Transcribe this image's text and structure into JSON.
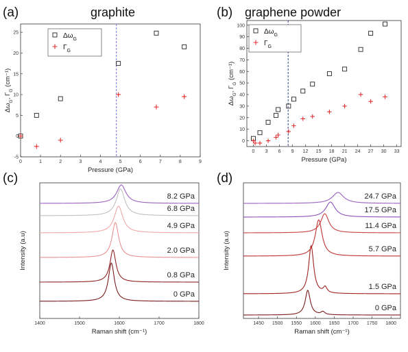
{
  "chart_data": [
    {
      "type": "scatter",
      "panel": "(a)",
      "title": "graphite",
      "xlabel": "Pressure (GPa)",
      "ylabel": "Δω_G, Γ_G (cm⁻¹)",
      "xlim": [
        0,
        9
      ],
      "ylim": [
        -5,
        27
      ],
      "xticks": [
        "0",
        "1",
        "2",
        "3",
        "4",
        "5",
        "6",
        "7",
        "8",
        "9"
      ],
      "yticks": [
        "-5",
        "0",
        "5",
        "10",
        "15",
        "20",
        "25"
      ],
      "legend_position": "top-left",
      "vline_x": 4.8,
      "series": [
        {
          "name": "Δω_G",
          "marker": "square",
          "color": "#222222",
          "x": [
            0.0,
            0.8,
            2.0,
            4.9,
            6.8,
            8.2
          ],
          "y": [
            0.0,
            5.0,
            9.0,
            17.5,
            24.8,
            21.5
          ]
        },
        {
          "name": "Γ_G",
          "marker": "plus",
          "color": "#e03030",
          "x": [
            0.0,
            0.8,
            2.0,
            4.9,
            6.8,
            8.2
          ],
          "y": [
            0.0,
            -2.5,
            -1.0,
            10.0,
            7.0,
            9.5
          ]
        }
      ]
    },
    {
      "type": "scatter",
      "panel": "(b)",
      "title": "graphene powder",
      "xlabel": "Pressure (GPa)",
      "ylabel": "Δω_G, Γ_G (cm⁻¹)",
      "xlim": [
        -1.5,
        34
      ],
      "ylim": [
        -5,
        104
      ],
      "xticks": [
        "0",
        "3",
        "6",
        "9",
        "12",
        "15",
        "18",
        "21",
        "24",
        "27",
        "30",
        "33"
      ],
      "yticks": [
        "0",
        "10",
        "20",
        "30",
        "40",
        "50",
        "60",
        "70",
        "80",
        "90",
        "100"
      ],
      "legend_position": "top-left",
      "vline_x": 8.0,
      "series": [
        {
          "name": "Δω_G",
          "marker": "square",
          "color": "#222222",
          "x": [
            0.0,
            1.5,
            3.4,
            5.2,
            5.7,
            8.1,
            9.3,
            11.4,
            13.6,
            17.5,
            21.0,
            24.7,
            27.0,
            30.3
          ],
          "y": [
            2.0,
            7.0,
            16.0,
            22.0,
            27.0,
            30.0,
            36.0,
            43.0,
            49.0,
            58.0,
            62.0,
            79.0,
            93.0,
            101.0
          ]
        },
        {
          "name": "Γ_G",
          "marker": "plus",
          "color": "#e03030",
          "x": [
            0.0,
            0.4,
            1.5,
            3.4,
            5.2,
            5.7,
            8.1,
            9.3,
            11.4,
            13.6,
            17.5,
            21.0,
            24.7,
            27.0,
            30.3
          ],
          "y": [
            0.0,
            -2.0,
            -2.0,
            0.0,
            3.0,
            5.0,
            8.0,
            13.0,
            19.0,
            21.0,
            25.0,
            30.0,
            40.0,
            34.0,
            38.0
          ]
        }
      ]
    },
    {
      "type": "line",
      "panel": "(c)",
      "xlabel": "Raman shift (cm⁻¹)",
      "ylabel": "Intensity (a.u)",
      "xlim": [
        1400,
        1800
      ],
      "xticks": [
        "1400",
        "1500",
        "1600",
        "1700",
        "1800"
      ],
      "series": [
        {
          "name": "0 GPa",
          "color": "#7a1a1a",
          "center": 1580,
          "width": 9,
          "height": 56,
          "baseline": 440
        },
        {
          "name": "0.8 GPa",
          "color": "#8c2222",
          "center": 1584,
          "width": 9,
          "height": 47,
          "baseline": 412
        },
        {
          "name": "2.0 GPa",
          "color": "#e89090",
          "center": 1590,
          "width": 10,
          "height": 51,
          "baseline": 376
        },
        {
          "name": "4.9 GPa",
          "color": "#f0a8a8",
          "center": 1598,
          "width": 13,
          "height": 39,
          "baseline": 340
        },
        {
          "name": "6.8 GPa",
          "color": "#c0c0c0",
          "center": 1603,
          "width": 13,
          "height": 39,
          "baseline": 315
        },
        {
          "name": "8.2 GPa",
          "color": "#9a60c0",
          "center": 1605,
          "width": 14,
          "height": 27,
          "baseline": 297
        }
      ]
    },
    {
      "type": "line",
      "panel": "(d)",
      "xlabel": "Raman shift (cm⁻¹)",
      "ylabel": "Intensity (a.u)",
      "xlim": [
        1410,
        1825
      ],
      "xticks": [
        "1450",
        "1500",
        "1550",
        "1600",
        "1650",
        "1700",
        "1750",
        "1800"
      ],
      "series": [
        {
          "name": "0 GPa",
          "color": "#7a1a1a",
          "center": 1580,
          "width": 8,
          "height": 36,
          "baseline": 460,
          "shoulder": 1620
        },
        {
          "name": "1.5 GPa",
          "color": "#a02020",
          "center": 1589,
          "width": 8,
          "height": 70,
          "baseline": 429,
          "shoulder": 1626
        },
        {
          "name": "5.7 GPa",
          "color": "#c03030",
          "center": 1609,
          "width": 11,
          "height": 53,
          "baseline": 374
        },
        {
          "name": "11.4 GPa",
          "color": "#c84040",
          "center": 1625,
          "width": 13,
          "height": 28,
          "baseline": 340
        },
        {
          "name": "17.5 GPa",
          "color": "#8a50b8",
          "center": 1640,
          "width": 15,
          "height": 22,
          "baseline": 317
        },
        {
          "name": "24.7 GPa",
          "color": "#9a60c0",
          "center": 1660,
          "width": 18,
          "height": 16,
          "baseline": 297
        }
      ]
    }
  ]
}
